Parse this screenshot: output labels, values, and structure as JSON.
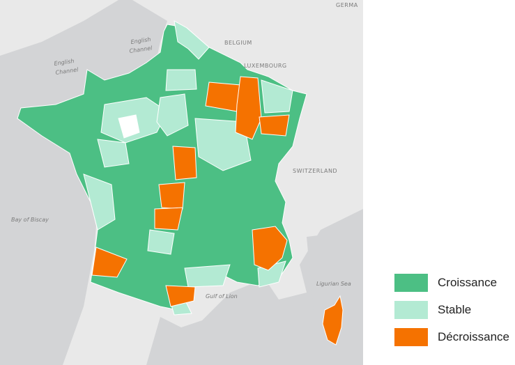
{
  "map": {
    "labels": [
      "GERMA",
      "BELGIUM",
      "LUXEMBOURG",
      "English",
      "Channel",
      "English",
      "Channel",
      "Bay of Biscay",
      "SWITZERLAND",
      "Gulf of Lion",
      "Ligurian Sea"
    ]
  },
  "legend": {
    "items": [
      {
        "label": "Croissance",
        "color": "#4cbf84"
      },
      {
        "label": "Stable",
        "color": "#b3ead3"
      },
      {
        "label": "Décroissance",
        "color": "#f57200"
      }
    ]
  }
}
